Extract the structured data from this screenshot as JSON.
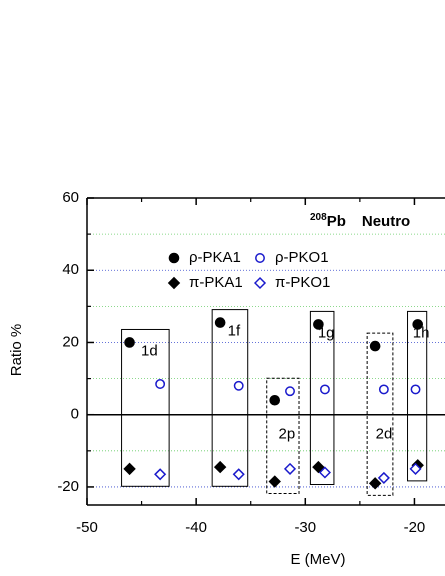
{
  "chart_data": {
    "type": "scatter",
    "title_superscript": "208",
    "title": "Pb",
    "subtitle": "Neutro",
    "x_label": "E (MeV)",
    "y_label": "Ratio %",
    "xlim": [
      -50,
      -17.2
    ],
    "ylim": [
      -25,
      60
    ],
    "xticks": [
      -50,
      -40,
      -30,
      -20
    ],
    "xminorticks": [
      -45,
      -35,
      -25
    ],
    "yticks": [
      -20,
      0,
      20,
      40,
      60
    ],
    "yminorticks": [
      -10,
      10,
      30,
      50
    ],
    "grid": true,
    "grid_color": "#3344cc",
    "minor_grid_color": "#66cc66",
    "zero_line": true,
    "levels": [
      {
        "label": "1d",
        "dashed": false
      },
      {
        "label": "1f",
        "dashed": false
      },
      {
        "label": "2p",
        "dashed": true
      },
      {
        "label": "1g",
        "dashed": false
      },
      {
        "label": "2d",
        "dashed": true
      },
      {
        "label": "1h",
        "dashed": false
      }
    ],
    "series": [
      {
        "name": "ρ-PKA1",
        "color": "#000000",
        "marker": "circle",
        "filled": true,
        "x": [
          -46.1,
          -37.8,
          -32.8,
          -28.8,
          -23.6,
          -19.7
        ],
        "values": [
          20,
          25.5,
          4,
          25,
          19,
          25
        ]
      },
      {
        "name": "ρ-PKO1",
        "color": "#1a1acc",
        "marker": "circle",
        "filled": false,
        "x": [
          -43.3,
          -36.1,
          -31.4,
          -28.2,
          -22.8,
          -19.9
        ],
        "values": [
          8.5,
          8,
          6.5,
          7,
          7,
          7
        ]
      },
      {
        "name": "π-PKA1",
        "color": "#000000",
        "marker": "diamond",
        "filled": true,
        "x": [
          -46.1,
          -37.8,
          -32.8,
          -28.8,
          -23.6,
          -19.7
        ],
        "values": [
          -15,
          -14.5,
          -18.5,
          -14.5,
          -19,
          -14
        ]
      },
      {
        "name": "π-PKO1",
        "color": "#1a1acc",
        "marker": "diamond",
        "filled": false,
        "x": [
          -43.3,
          -36.1,
          -31.4,
          -28.2,
          -22.8,
          -19.9
        ],
        "values": [
          -16.5,
          -16.5,
          -15,
          -16,
          -17.5,
          -15
        ]
      }
    ]
  }
}
